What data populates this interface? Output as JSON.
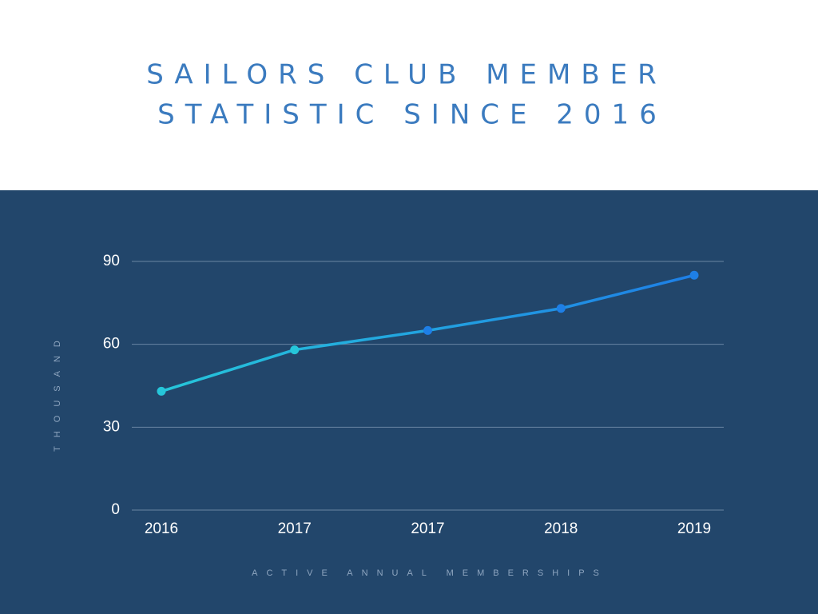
{
  "chart_data": {
    "type": "line",
    "title": [
      "SAILORS CLUB MEMBER",
      "STATISTIC SINCE 2016"
    ],
    "ylabel": "THOUSAND",
    "xlabel": "ACTIVE ANNUAL MEMBERSHIPS",
    "categories": [
      "2016",
      "2017",
      "2017",
      "2018",
      "2019"
    ],
    "series": [
      {
        "colors": [
          "#26c6da",
          "#1e7fe6"
        ],
        "values": [
          43,
          58,
          65,
          73,
          85
        ]
      }
    ],
    "ylim": [
      0,
      90
    ],
    "yticks": [
      0,
      30,
      60,
      90
    ],
    "grid": true,
    "background": "#22466b"
  }
}
